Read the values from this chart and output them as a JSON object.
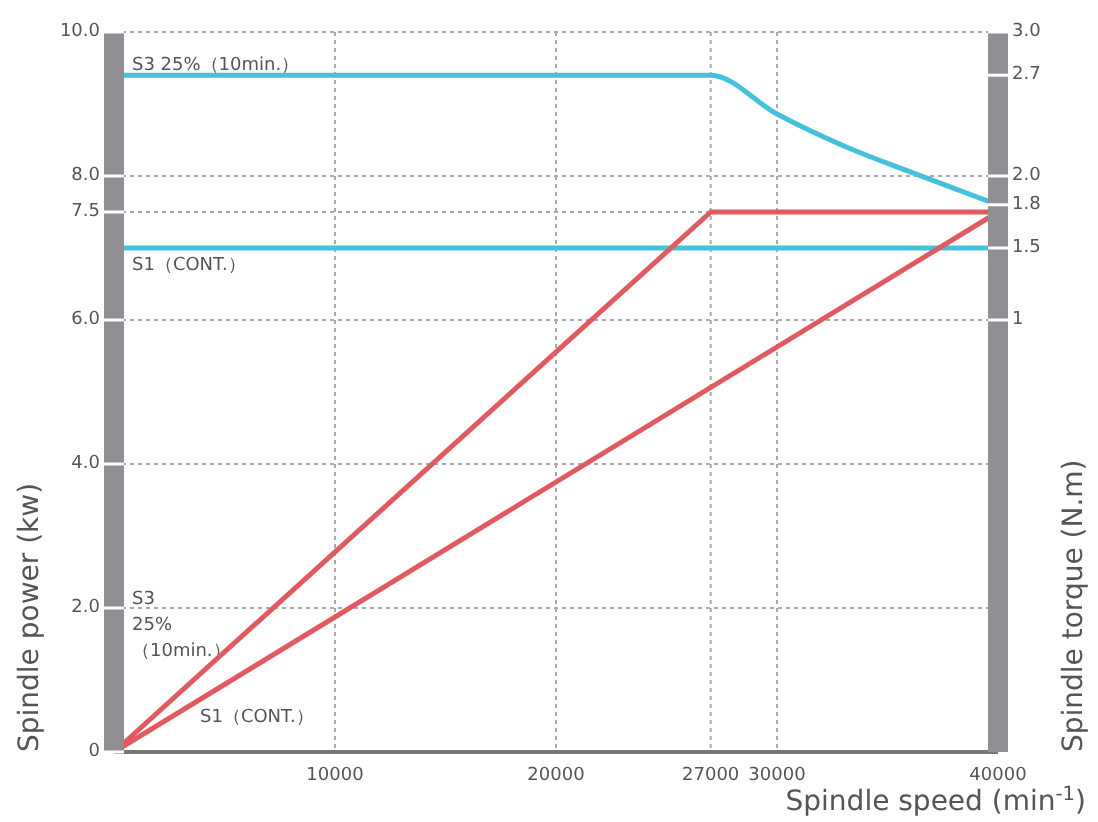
{
  "chart_data": {
    "type": "line",
    "xlabel": "Spindle speed (min$^{-1}$)",
    "ylabel": "Spindle power (kw)",
    "y2label": "Spindle torque (N.m)",
    "xlim": [
      0,
      40000
    ],
    "xticks": [
      10000,
      20000,
      27000,
      30000,
      40000
    ],
    "ylim": [
      0,
      10
    ],
    "yticks": [
      {
        "value": 0,
        "label": "0"
      },
      {
        "value": 2,
        "label": "2.0"
      },
      {
        "value": 4,
        "label": "4.0"
      },
      {
        "value": 6,
        "label": "6.0"
      },
      {
        "value": 7.5,
        "label": "7.5"
      },
      {
        "value": 8,
        "label": "8.0"
      },
      {
        "value": 10,
        "label": "10.0"
      }
    ],
    "y2lim": [
      -2,
      3
    ],
    "y2ticks": [
      1,
      1.5,
      1.8,
      {
        "value": 2,
        "label": "2.0"
      },
      2.7,
      {
        "value": 3,
        "label": "3.0"
      }
    ],
    "grid": true,
    "marker": "none",
    "line_style": "solid",
    "series": [
      {
        "color": "#46c1dc",
        "axis": "y2",
        "x": [
          0,
          27000,
          30000,
          33000,
          36000,
          40000
        ],
        "values": [
          2.7,
          2.7,
          2.43,
          2.21,
          2.03,
          1.8
        ]
      },
      {
        "color": "#46c1dc",
        "axis": "y2",
        "x": [
          0,
          40000
        ],
        "values": [
          1.5,
          1.5
        ]
      },
      {
        "color": "#e05a60",
        "x": [
          0,
          27000,
          40000
        ],
        "values": [
          0,
          7.5,
          7.5
        ]
      },
      {
        "color": "#e05a60",
        "x": [
          0,
          40000
        ],
        "values": [
          0,
          7.5
        ]
      }
    ],
    "annotations": [
      "S3 25%（10min.）",
      "S1（CONT.）",
      "S3\n25%\n（10min.）",
      "S1（CONT.）"
    ]
  }
}
